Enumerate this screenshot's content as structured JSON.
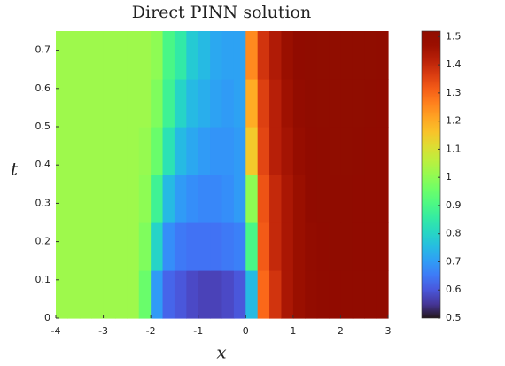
{
  "chart_data": {
    "type": "heatmap",
    "title": "Direct PINN solution",
    "x_label": "x",
    "y_label": "t",
    "x": [
      -3.875,
      -3.625,
      -3.375,
      -3.125,
      -2.875,
      -2.625,
      -2.375,
      -2.125,
      -1.875,
      -1.625,
      -1.375,
      -1.125,
      -0.875,
      -0.625,
      -0.375,
      -0.125,
      0.125,
      0.375,
      0.625,
      0.875,
      1.125,
      1.375,
      1.625,
      1.875,
      2.125,
      2.375,
      2.625,
      2.875
    ],
    "y": [
      0.0625,
      0.1875,
      0.3125,
      0.4375,
      0.5625,
      0.6875
    ],
    "z": [
      [
        1.02,
        1.02,
        1.02,
        1.02,
        1.02,
        1.02,
        1.02,
        0.95,
        0.7,
        0.62,
        0.6,
        0.58,
        0.57,
        0.57,
        0.58,
        0.6,
        0.75,
        1.3,
        1.38,
        1.44,
        1.47,
        1.49,
        1.5,
        1.5,
        1.5,
        1.5,
        1.5,
        1.5
      ],
      [
        1.02,
        1.02,
        1.02,
        1.02,
        1.02,
        1.02,
        1.02,
        0.98,
        0.8,
        0.68,
        0.65,
        0.64,
        0.64,
        0.64,
        0.65,
        0.66,
        0.9,
        1.32,
        1.4,
        1.44,
        1.47,
        1.49,
        1.5,
        1.51,
        1.51,
        1.5,
        1.5,
        1.5
      ],
      [
        1.02,
        1.02,
        1.02,
        1.02,
        1.02,
        1.02,
        1.02,
        1.0,
        0.88,
        0.75,
        0.7,
        0.68,
        0.67,
        0.67,
        0.68,
        0.7,
        1.0,
        1.33,
        1.4,
        1.44,
        1.47,
        1.5,
        1.51,
        1.51,
        1.51,
        1.5,
        1.5,
        1.5
      ],
      [
        1.02,
        1.02,
        1.02,
        1.02,
        1.02,
        1.02,
        1.02,
        1.01,
        0.95,
        0.83,
        0.75,
        0.72,
        0.7,
        0.69,
        0.69,
        0.7,
        1.15,
        1.35,
        1.42,
        1.45,
        1.48,
        1.5,
        1.51,
        1.52,
        1.52,
        1.51,
        1.5,
        1.5
      ],
      [
        1.02,
        1.02,
        1.02,
        1.02,
        1.02,
        1.02,
        1.02,
        1.02,
        0.98,
        0.88,
        0.8,
        0.75,
        0.73,
        0.71,
        0.7,
        0.71,
        1.2,
        1.36,
        1.42,
        1.46,
        1.49,
        1.51,
        1.52,
        1.52,
        1.52,
        1.52,
        1.51,
        1.5
      ],
      [
        1.02,
        1.02,
        1.02,
        1.02,
        1.02,
        1.02,
        1.02,
        1.02,
        1.0,
        0.9,
        0.85,
        0.78,
        0.75,
        0.72,
        0.71,
        0.71,
        1.25,
        1.38,
        1.43,
        1.47,
        1.5,
        1.51,
        1.52,
        1.52,
        1.52,
        1.52,
        1.52,
        1.51
      ]
    ],
    "xlim": [
      -4,
      3
    ],
    "xticks": [
      -4,
      -3,
      -2,
      -1,
      0,
      1,
      2,
      3
    ],
    "ylim": [
      0,
      0.75
    ],
    "yticks": [
      0,
      0.1,
      0.2,
      0.3,
      0.4,
      0.5,
      0.6,
      0.7
    ],
    "colormap": "turbo",
    "zlim": [
      0.5,
      1.52
    ],
    "zticks": [
      0.5,
      0.6,
      0.7,
      0.8,
      0.9,
      1,
      1.1,
      1.2,
      1.3,
      1.4,
      1.5
    ]
  }
}
